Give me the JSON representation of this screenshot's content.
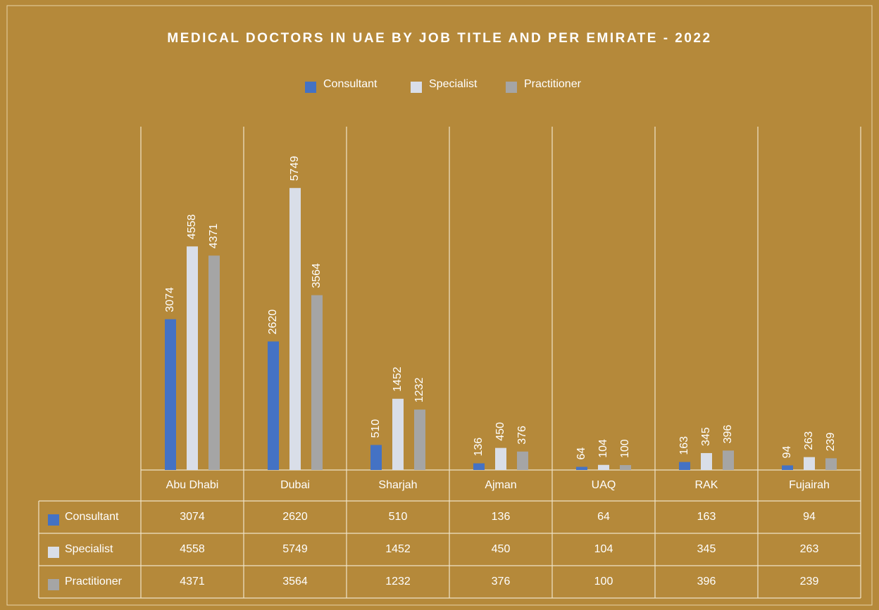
{
  "chart_data": {
    "type": "bar",
    "title": "MEDICAL DOCTORS IN UAE BY JOB TITLE AND PER EMIRATE - 2022",
    "categories": [
      "Abu Dhabi",
      "Dubai",
      "Sharjah",
      "Ajman",
      "UAQ",
      "RAK",
      "Fujairah"
    ],
    "series": [
      {
        "name": "Consultant",
        "color": "#4472c4",
        "values": [
          3074,
          2620,
          510,
          136,
          64,
          163,
          94
        ]
      },
      {
        "name": "Specialist",
        "color": "#d9dee8",
        "values": [
          4558,
          5749,
          1452,
          450,
          104,
          345,
          263
        ]
      },
      {
        "name": "Practitioner",
        "color": "#a5a5a5",
        "values": [
          4371,
          3564,
          1232,
          376,
          100,
          396,
          239
        ]
      }
    ],
    "ylim": [
      0,
      7000
    ]
  }
}
